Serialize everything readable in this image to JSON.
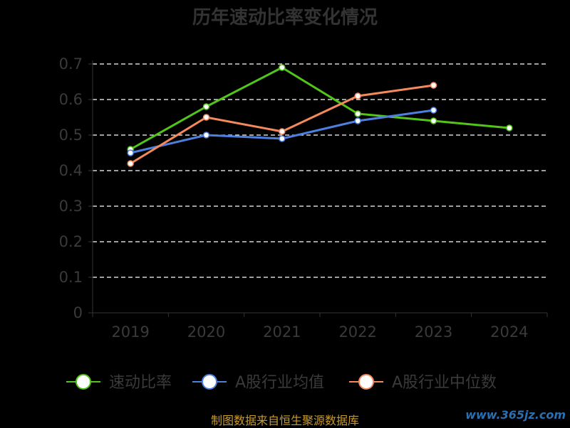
{
  "chart_data": {
    "type": "line",
    "title": "历年速动比率变化情况",
    "categories": [
      "2019",
      "2020",
      "2021",
      "2022",
      "2023",
      "2024"
    ],
    "ylim": [
      0,
      0.7
    ],
    "yticks": [
      "0",
      "0.1",
      "0.2",
      "0.3",
      "0.4",
      "0.5",
      "0.6",
      "0.7"
    ],
    "grid": true,
    "legend_position": "bottom",
    "series": [
      {
        "name": "速动比率",
        "color": "#52c41a",
        "values": [
          0.46,
          0.58,
          0.69,
          0.56,
          0.54,
          0.52
        ]
      },
      {
        "name": "A股行业均值",
        "color": "#4d7fe0",
        "values": [
          0.45,
          0.5,
          0.49,
          0.54,
          0.57,
          null
        ]
      },
      {
        "name": "A股行业中位数",
        "color": "#f5895e",
        "values": [
          0.42,
          0.55,
          0.51,
          0.61,
          0.64,
          null
        ]
      }
    ]
  },
  "source_text": "制图数据来自恒生聚源数据库",
  "watermark": "www.365jz.com"
}
